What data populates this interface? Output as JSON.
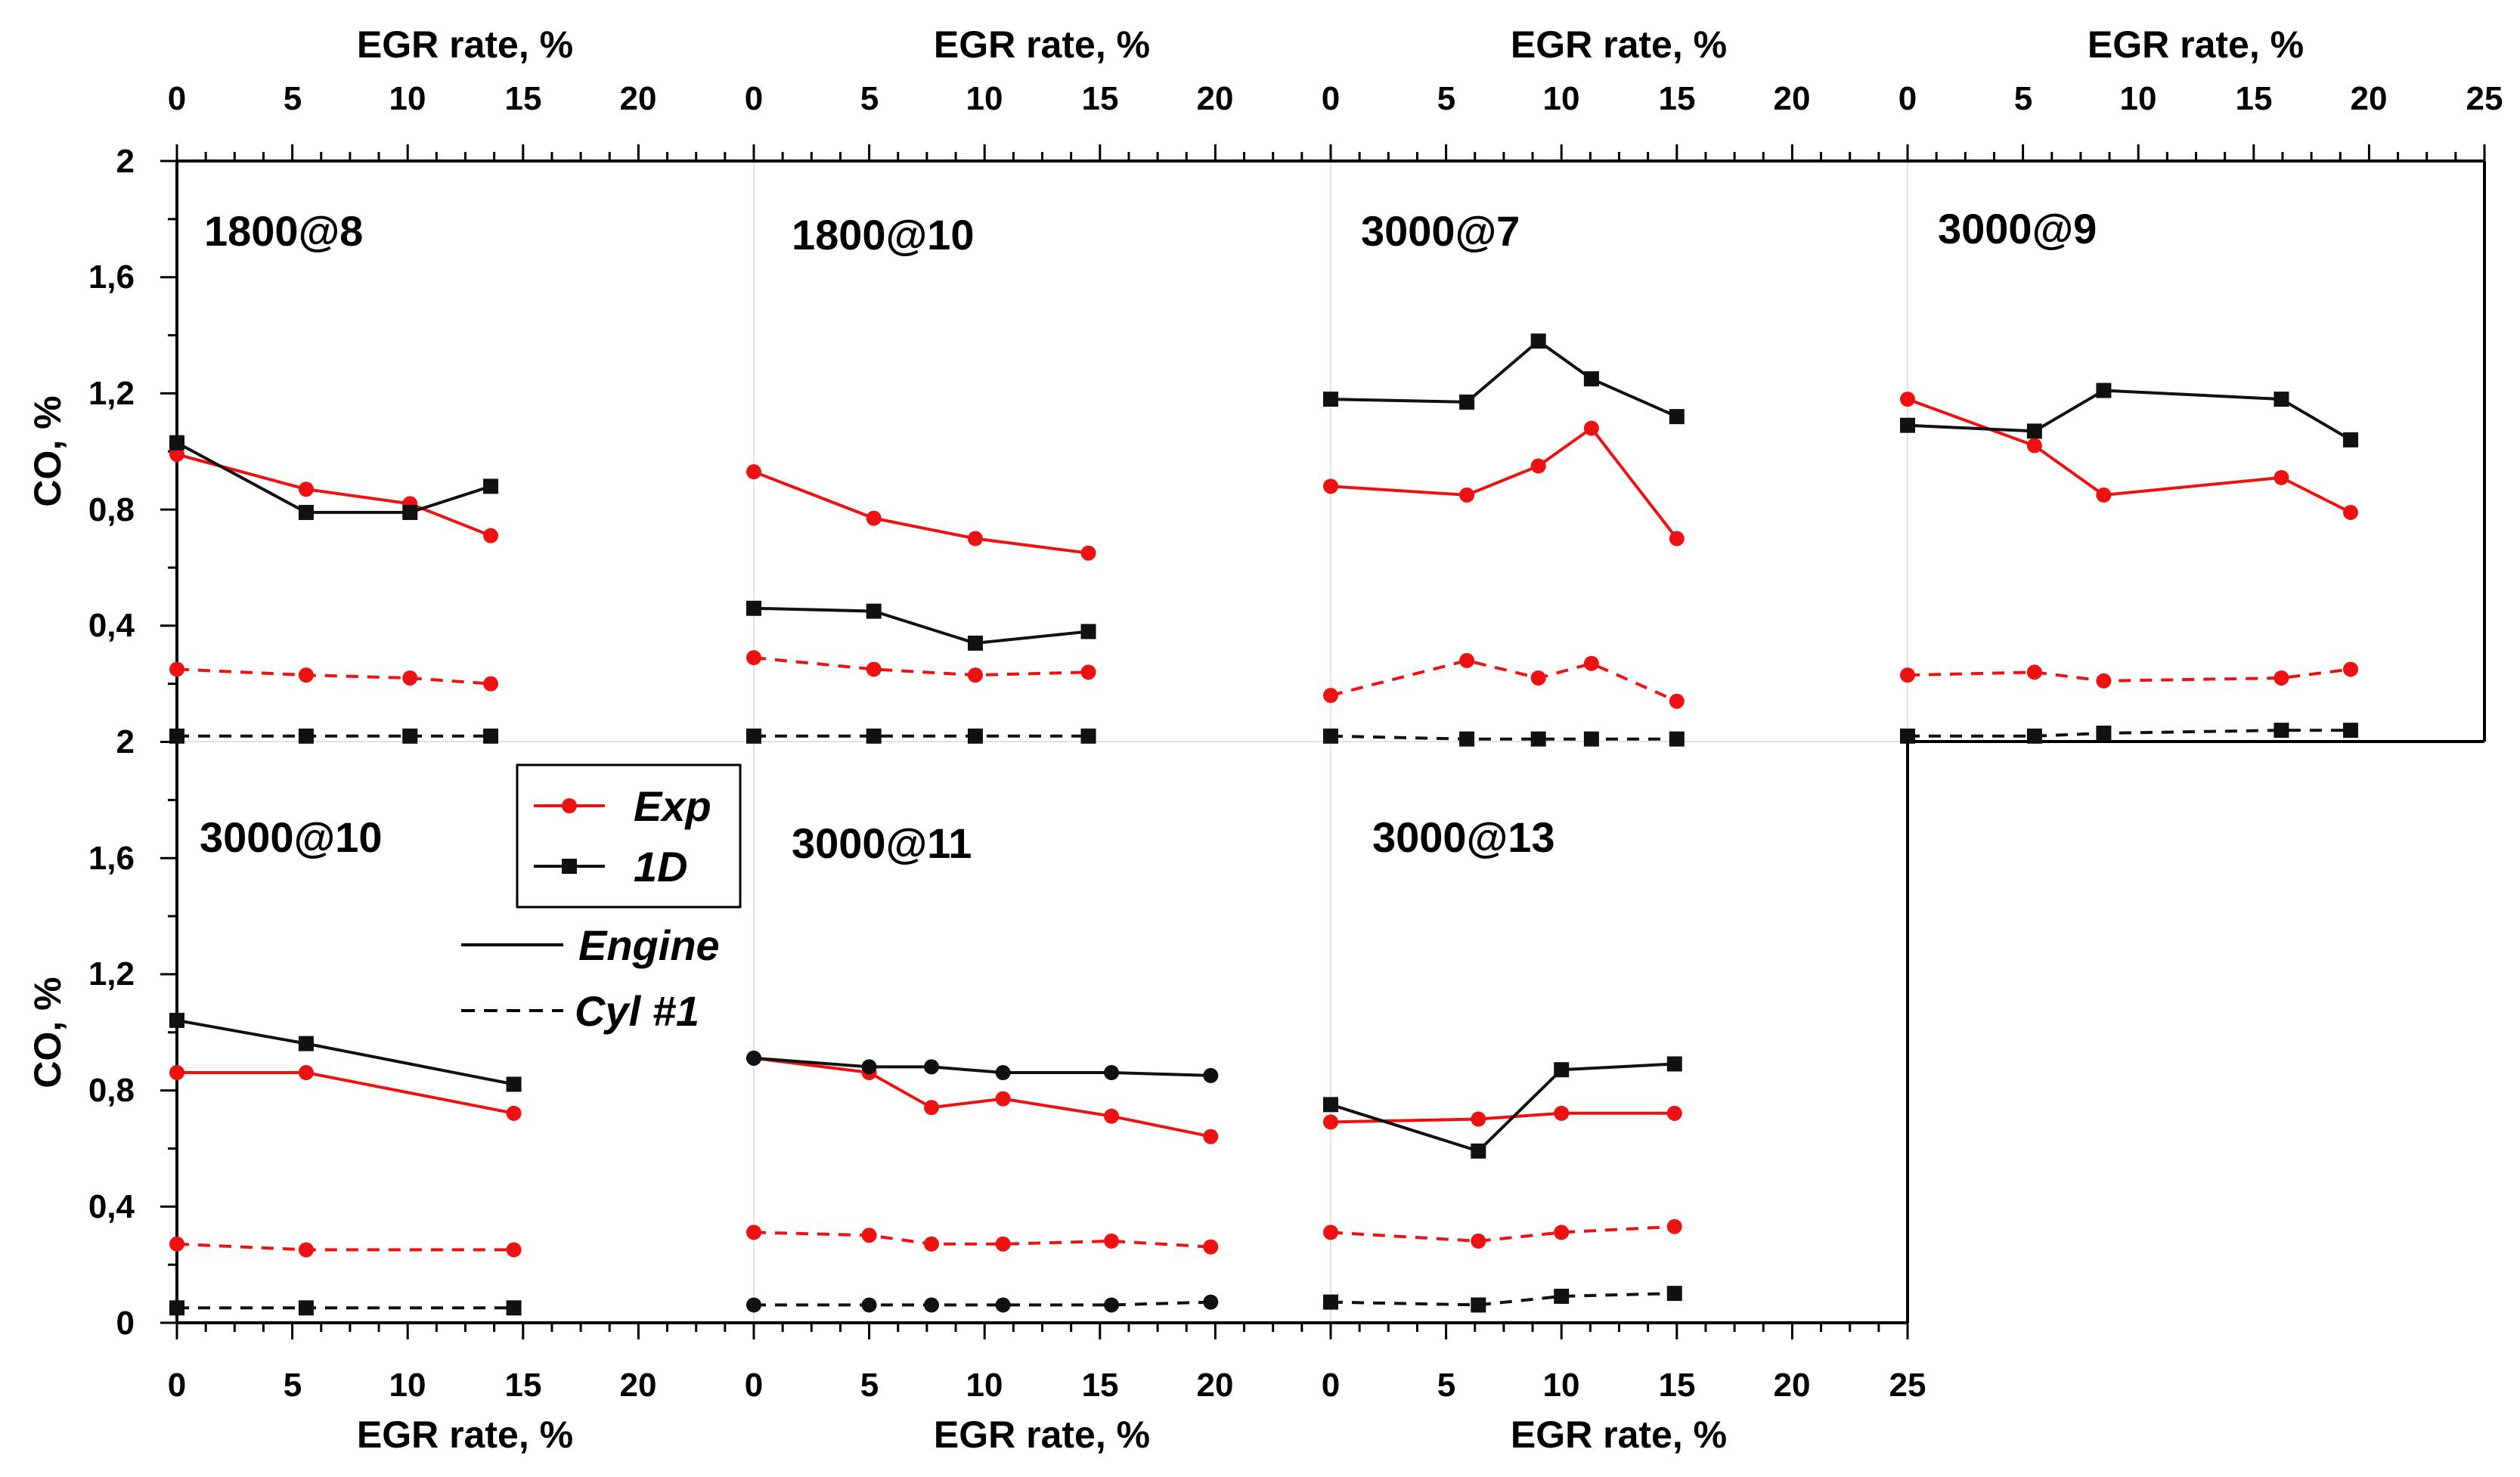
{
  "chart_data": {
    "type": "line",
    "x_axis_title": "EGR rate, %",
    "y_axis_title": "CO, %",
    "x_tick_labels": [
      "0",
      "5",
      "10",
      "15",
      "20",
      "25"
    ],
    "x_ticks_per_panel": [
      0,
      5,
      10,
      15,
      20
    ],
    "y_tick_labels_top": [
      "2",
      "1,6",
      "1,2",
      "0,8",
      "0,4"
    ],
    "y_tick_labels_bottom": [
      "2",
      "1,6",
      "1,2",
      "0,8",
      "0,4",
      "0"
    ],
    "y_tick_values": [
      2,
      1.6,
      1.2,
      0.8,
      0.4,
      0
    ],
    "ylim": [
      0,
      2
    ],
    "xlim_per_panel": [
      0,
      25
    ],
    "legend": {
      "exp": "Exp",
      "oned": "1D",
      "engine": "Engine",
      "cyl": "Cyl #1",
      "colors": {
        "exp": "#ee1111",
        "oned": "#111111"
      }
    },
    "panels": [
      {
        "label": "1800@8",
        "row": 0,
        "col": 0,
        "series": [
          {
            "name": "Exp Engine",
            "color": "#ee1111",
            "style": "solid",
            "marker": "circle",
            "x": [
              0,
              5.6,
              10.1,
              13.6
            ],
            "y": [
              0.99,
              0.87,
              0.82,
              0.71
            ]
          },
          {
            "name": "1D Engine",
            "color": "#111111",
            "style": "solid",
            "marker": "square",
            "x": [
              0,
              5.6,
              10.1,
              13.6
            ],
            "y": [
              1.03,
              0.79,
              0.79,
              0.88
            ]
          },
          {
            "name": "Exp Cyl #1",
            "color": "#ee1111",
            "style": "dashed",
            "marker": "circle",
            "x": [
              0,
              5.6,
              10.1,
              13.6
            ],
            "y": [
              0.25,
              0.23,
              0.22,
              0.2
            ]
          },
          {
            "name": "1D Cyl #1",
            "color": "#111111",
            "style": "dashed",
            "marker": "square",
            "x": [
              0,
              5.6,
              10.1,
              13.6
            ],
            "y": [
              0.02,
              0.02,
              0.02,
              0.02
            ]
          }
        ]
      },
      {
        "label": "1800@10",
        "row": 0,
        "col": 1,
        "series": [
          {
            "name": "Exp Engine",
            "color": "#ee1111",
            "style": "solid",
            "marker": "circle",
            "x": [
              0,
              5.2,
              9.6,
              14.5
            ],
            "y": [
              0.93,
              0.77,
              0.7,
              0.65
            ]
          },
          {
            "name": "1D Engine",
            "color": "#111111",
            "style": "solid",
            "marker": "square",
            "x": [
              0,
              5.2,
              9.6,
              14.5
            ],
            "y": [
              0.46,
              0.45,
              0.34,
              0.38
            ]
          },
          {
            "name": "Exp Cyl #1",
            "color": "#ee1111",
            "style": "dashed",
            "marker": "circle",
            "x": [
              0,
              5.2,
              9.6,
              14.5
            ],
            "y": [
              0.29,
              0.25,
              0.23,
              0.24
            ]
          },
          {
            "name": "1D Cyl #1",
            "color": "#111111",
            "style": "dashed",
            "marker": "square",
            "x": [
              0,
              5.2,
              9.6,
              14.5
            ],
            "y": [
              0.02,
              0.02,
              0.02,
              0.02
            ]
          }
        ]
      },
      {
        "label": "3000@7",
        "row": 0,
        "col": 2,
        "series": [
          {
            "name": "Exp Engine",
            "color": "#ee1111",
            "style": "solid",
            "marker": "circle",
            "x": [
              0,
              5.9,
              9,
              11.3,
              15
            ],
            "y": [
              0.88,
              0.85,
              0.95,
              1.08,
              0.7
            ]
          },
          {
            "name": "1D Engine",
            "color": "#111111",
            "style": "solid",
            "marker": "square",
            "x": [
              0,
              5.9,
              9,
              11.3,
              15
            ],
            "y": [
              1.18,
              1.17,
              1.38,
              1.25,
              1.12
            ]
          },
          {
            "name": "Exp Cyl #1",
            "color": "#ee1111",
            "style": "dashed",
            "marker": "circle",
            "x": [
              0,
              5.9,
              9,
              11.3,
              15
            ],
            "y": [
              0.16,
              0.28,
              0.22,
              0.27,
              0.14
            ]
          },
          {
            "name": "1D Cyl #1",
            "color": "#111111",
            "style": "dashed",
            "marker": "square",
            "x": [
              0,
              5.9,
              9,
              11.3,
              15
            ],
            "y": [
              0.02,
              0.01,
              0.01,
              0.01,
              0.01
            ]
          }
        ]
      },
      {
        "label": "3000@9",
        "row": 0,
        "col": 3,
        "series": [
          {
            "name": "Exp Engine",
            "color": "#ee1111",
            "style": "solid",
            "marker": "circle",
            "x": [
              0,
              5.5,
              8.5,
              16.2,
              19.2
            ],
            "y": [
              1.18,
              1.02,
              0.85,
              0.91,
              0.79
            ]
          },
          {
            "name": "1D Engine",
            "color": "#111111",
            "style": "solid",
            "marker": "square",
            "x": [
              0,
              5.5,
              8.5,
              16.2,
              19.2
            ],
            "y": [
              1.09,
              1.07,
              1.21,
              1.18,
              1.04
            ]
          },
          {
            "name": "Exp Cyl #1",
            "color": "#ee1111",
            "style": "dashed",
            "marker": "circle",
            "x": [
              0,
              5.5,
              8.5,
              16.2,
              19.2
            ],
            "y": [
              0.23,
              0.24,
              0.21,
              0.22,
              0.25
            ]
          },
          {
            "name": "1D Cyl #1",
            "color": "#111111",
            "style": "dashed",
            "marker": "square",
            "x": [
              0,
              5.5,
              8.5,
              16.2,
              19.2
            ],
            "y": [
              0.02,
              0.02,
              0.03,
              0.04,
              0.04
            ]
          }
        ]
      },
      {
        "label": "3000@10",
        "row": 1,
        "col": 0,
        "series": [
          {
            "name": "Exp Engine",
            "color": "#ee1111",
            "style": "solid",
            "marker": "circle",
            "x": [
              0,
              5.6,
              14.6
            ],
            "y": [
              0.86,
              0.86,
              0.72
            ]
          },
          {
            "name": "1D Engine",
            "color": "#111111",
            "style": "solid",
            "marker": "square",
            "x": [
              0,
              5.6,
              14.6
            ],
            "y": [
              1.04,
              0.96,
              0.82
            ]
          },
          {
            "name": "Exp Cyl #1",
            "color": "#ee1111",
            "style": "dashed",
            "marker": "circle",
            "x": [
              0,
              5.6,
              14.6
            ],
            "y": [
              0.27,
              0.25,
              0.25
            ]
          },
          {
            "name": "1D Cyl #1",
            "color": "#111111",
            "style": "dashed",
            "marker": "square",
            "x": [
              0,
              5.6,
              14.6
            ],
            "y": [
              0.05,
              0.05,
              0.05
            ]
          }
        ]
      },
      {
        "label": "3000@11",
        "row": 1,
        "col": 1,
        "series": [
          {
            "name": "Exp Engine",
            "color": "#ee1111",
            "style": "solid",
            "marker": "circle",
            "x": [
              0,
              5,
              7.7,
              10.8,
              15.5,
              19.8
            ],
            "y": [
              0.91,
              0.86,
              0.74,
              0.77,
              0.71,
              0.64
            ]
          },
          {
            "name": "1D Engine",
            "color": "#111111",
            "style": "solid",
            "marker": "circle",
            "x": [
              0,
              5,
              7.7,
              10.8,
              15.5,
              19.8
            ],
            "y": [
              0.91,
              0.88,
              0.88,
              0.86,
              0.86,
              0.85
            ]
          },
          {
            "name": "Exp Cyl #1",
            "color": "#ee1111",
            "style": "dashed",
            "marker": "circle",
            "x": [
              0,
              5,
              7.7,
              10.8,
              15.5,
              19.8
            ],
            "y": [
              0.31,
              0.3,
              0.27,
              0.27,
              0.28,
              0.26
            ]
          },
          {
            "name": "1D Cyl #1",
            "color": "#111111",
            "style": "dashed",
            "marker": "circle",
            "x": [
              0,
              5,
              7.7,
              10.8,
              15.5,
              19.8
            ],
            "y": [
              0.06,
              0.06,
              0.06,
              0.06,
              0.06,
              0.07
            ]
          }
        ]
      },
      {
        "label": "3000@13",
        "row": 1,
        "col": 2,
        "series": [
          {
            "name": "Exp Engine",
            "color": "#ee1111",
            "style": "solid",
            "marker": "circle",
            "x": [
              0,
              6.4,
              10,
              14.9
            ],
            "y": [
              0.69,
              0.7,
              0.72,
              0.72
            ]
          },
          {
            "name": "1D Engine",
            "color": "#111111",
            "style": "solid",
            "marker": "square",
            "x": [
              0,
              6.4,
              10,
              14.9
            ],
            "y": [
              0.75,
              0.59,
              0.87,
              0.89
            ]
          },
          {
            "name": "Exp Cyl #1",
            "color": "#ee1111",
            "style": "dashed",
            "marker": "circle",
            "x": [
              0,
              6.4,
              10,
              14.9
            ],
            "y": [
              0.31,
              0.28,
              0.31,
              0.33
            ]
          },
          {
            "name": "1D Cyl #1",
            "color": "#111111",
            "style": "dashed",
            "marker": "square",
            "x": [
              0,
              6.4,
              10,
              14.9
            ],
            "y": [
              0.07,
              0.06,
              0.09,
              0.1
            ]
          }
        ]
      }
    ]
  }
}
